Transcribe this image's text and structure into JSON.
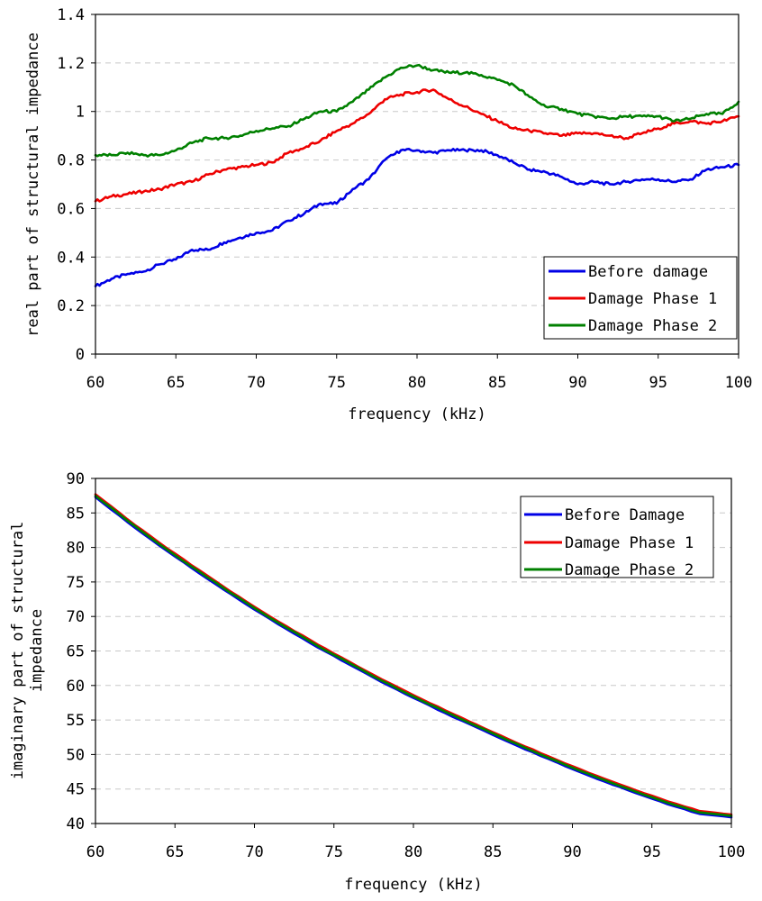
{
  "colors": {
    "before": "#0000e6",
    "phase1": "#ee0000",
    "phase2": "#008000"
  },
  "chart_data": [
    {
      "type": "line",
      "title": "",
      "xlabel": "frequency (kHz)",
      "ylabel": "real part of structural impedance",
      "xlim": [
        60,
        100
      ],
      "ylim": [
        0,
        1.4
      ],
      "xticks": [
        60,
        65,
        70,
        75,
        80,
        85,
        90,
        95,
        100
      ],
      "xtick_labels": [
        "60",
        "65",
        "70",
        "75",
        "80",
        "85",
        "90",
        "95",
        "100"
      ],
      "yticks": [
        0,
        0.2,
        0.4,
        0.6,
        0.8,
        1,
        1.2,
        1.4
      ],
      "ytick_labels": [
        "0",
        "0.2",
        "0.4",
        "0.6",
        "0.8",
        "1",
        "1.2",
        "1.4"
      ],
      "legend_position": "bottom-right",
      "x": [
        60,
        61,
        62,
        63,
        64,
        65,
        66,
        67,
        68,
        69,
        70,
        71,
        72,
        73,
        74,
        75,
        76,
        77,
        78,
        79,
        80,
        81,
        82,
        83,
        84,
        85,
        86,
        87,
        88,
        89,
        90,
        91,
        92,
        93,
        94,
        95,
        96,
        97,
        98,
        99,
        100
      ],
      "series": [
        {
          "name": "Before damage",
          "color_key": "before",
          "values": [
            0.28,
            0.31,
            0.33,
            0.34,
            0.37,
            0.39,
            0.43,
            0.43,
            0.46,
            0.48,
            0.5,
            0.51,
            0.55,
            0.58,
            0.62,
            0.62,
            0.68,
            0.72,
            0.8,
            0.84,
            0.84,
            0.83,
            0.84,
            0.84,
            0.84,
            0.82,
            0.79,
            0.76,
            0.75,
            0.73,
            0.7,
            0.71,
            0.7,
            0.71,
            0.72,
            0.72,
            0.71,
            0.72,
            0.76,
            0.77,
            0.78
          ]
        },
        {
          "name": "Damage Phase 1",
          "color_key": "phase1",
          "values": [
            0.63,
            0.65,
            0.66,
            0.67,
            0.68,
            0.7,
            0.71,
            0.74,
            0.76,
            0.77,
            0.78,
            0.79,
            0.83,
            0.85,
            0.88,
            0.92,
            0.95,
            0.99,
            1.05,
            1.07,
            1.08,
            1.09,
            1.05,
            1.02,
            0.99,
            0.96,
            0.93,
            0.92,
            0.91,
            0.9,
            0.91,
            0.91,
            0.9,
            0.89,
            0.91,
            0.93,
            0.95,
            0.96,
            0.95,
            0.96,
            0.98
          ]
        },
        {
          "name": "Damage Phase 2",
          "color_key": "phase2",
          "values": [
            0.82,
            0.82,
            0.83,
            0.82,
            0.82,
            0.84,
            0.87,
            0.89,
            0.89,
            0.9,
            0.92,
            0.93,
            0.94,
            0.97,
            1.0,
            1.0,
            1.04,
            1.09,
            1.14,
            1.18,
            1.19,
            1.17,
            1.16,
            1.16,
            1.15,
            1.13,
            1.11,
            1.06,
            1.02,
            1.01,
            0.99,
            0.98,
            0.97,
            0.98,
            0.98,
            0.98,
            0.96,
            0.97,
            0.99,
            0.99,
            1.04
          ]
        }
      ]
    },
    {
      "type": "line",
      "title": "",
      "xlabel": "frequency (kHz)",
      "ylabel_lines": [
        "imaginary part of structural",
        "impedance"
      ],
      "xlim": [
        60,
        100
      ],
      "ylim": [
        40,
        90
      ],
      "xticks": [
        60,
        65,
        70,
        75,
        80,
        85,
        90,
        95,
        100
      ],
      "xtick_labels": [
        "60",
        "65",
        "70",
        "75",
        "80",
        "85",
        "90",
        "95",
        "100"
      ],
      "yticks": [
        40,
        45,
        50,
        55,
        60,
        65,
        70,
        75,
        80,
        85,
        90
      ],
      "ytick_labels": [
        "40",
        "45",
        "50",
        "55",
        "60",
        "65",
        "70",
        "75",
        "80",
        "85",
        "90"
      ],
      "legend_position": "top-right",
      "x": [
        60,
        62,
        64,
        66,
        68,
        70,
        72,
        74,
        76,
        78,
        80,
        82,
        84,
        86,
        88,
        90,
        92,
        94,
        96,
        98,
        100
      ],
      "series": [
        {
          "name": "Before Damage",
          "color_key": "before",
          "values": [
            87.3,
            83.7,
            80.3,
            77.1,
            74.0,
            71.0,
            68.2,
            65.5,
            63.0,
            60.5,
            58.2,
            56.0,
            53.9,
            51.8,
            49.8,
            47.9,
            46.1,
            44.4,
            42.8,
            41.4,
            40.9
          ]
        },
        {
          "name": "Damage Phase 1",
          "color_key": "phase1",
          "values": [
            87.7,
            84.1,
            80.7,
            77.5,
            74.4,
            71.4,
            68.6,
            65.9,
            63.4,
            60.9,
            58.6,
            56.4,
            54.3,
            52.2,
            50.2,
            48.3,
            46.5,
            44.8,
            43.2,
            41.8,
            41.3
          ]
        },
        {
          "name": "Damage Phase 2",
          "color_key": "phase2",
          "values": [
            87.5,
            83.9,
            80.5,
            77.3,
            74.2,
            71.2,
            68.4,
            65.7,
            63.2,
            60.7,
            58.4,
            56.2,
            54.1,
            52.0,
            50.0,
            48.1,
            46.3,
            44.6,
            43.0,
            41.6,
            41.1
          ]
        }
      ]
    }
  ]
}
